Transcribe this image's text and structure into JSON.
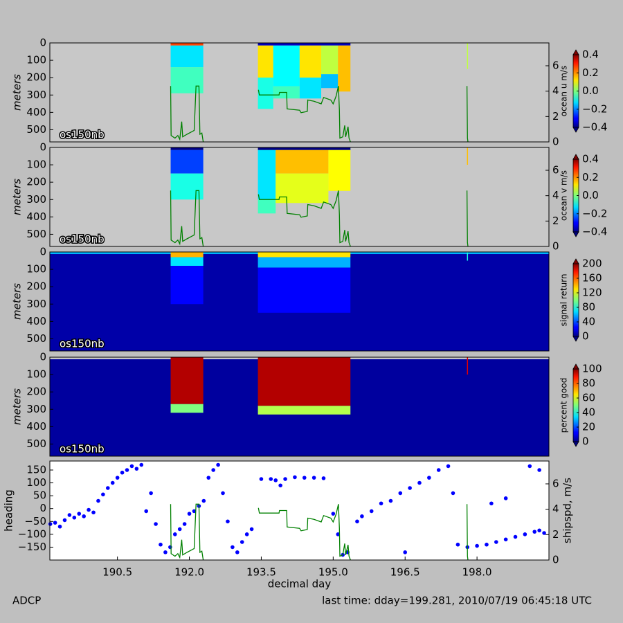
{
  "chart_data": [
    {
      "type": "heatmap",
      "ylabel": "meters",
      "annotation": "os150nb",
      "xlim": [
        189.09,
        199.5
      ],
      "ylim": [
        570,
        0
      ],
      "yticks": [
        0,
        100,
        200,
        300,
        400,
        500
      ],
      "colorbar_label": "ocean u m/s",
      "clim": [
        -0.4,
        0.4
      ],
      "cticks": [
        {
          "value": -0.4,
          "label": "−0.4"
        },
        {
          "value": -0.2,
          "label": "−0.2"
        },
        {
          "value": 0,
          "label": "0.0"
        },
        0.2,
        0.4
      ],
      "patches": [
        {
          "x": [
            191.61,
            192.29
          ],
          "depth": [
            0,
            15
          ],
          "value": 0.25
        },
        {
          "x": [
            191.61,
            192.29
          ],
          "depth": [
            15,
            140
          ],
          "value": -0.12
        },
        {
          "x": [
            191.61,
            192.29
          ],
          "depth": [
            140,
            290
          ],
          "value": -0.05
        },
        {
          "x": [
            193.43,
            195.36
          ],
          "depth": [
            0,
            15
          ],
          "value": -0.35
        },
        {
          "x": [
            193.43,
            193.75
          ],
          "depth": [
            15,
            200
          ],
          "value": 0.12
        },
        {
          "x": [
            193.43,
            193.75
          ],
          "depth": [
            200,
            380
          ],
          "value": -0.08
        },
        {
          "x": [
            193.75,
            194.3
          ],
          "depth": [
            15,
            250
          ],
          "value": -0.1
        },
        {
          "x": [
            193.75,
            194.3
          ],
          "depth": [
            250,
            320
          ],
          "value": -0.05
        },
        {
          "x": [
            194.3,
            194.75
          ],
          "depth": [
            15,
            200
          ],
          "value": 0.12
        },
        {
          "x": [
            194.3,
            194.75
          ],
          "depth": [
            200,
            320
          ],
          "value": -0.12
        },
        {
          "x": [
            194.75,
            195.1
          ],
          "depth": [
            15,
            180
          ],
          "value": 0.05
        },
        {
          "x": [
            194.75,
            195.1
          ],
          "depth": [
            180,
            260
          ],
          "value": -0.15
        },
        {
          "x": [
            195.1,
            195.36
          ],
          "depth": [
            15,
            280
          ],
          "value": 0.15
        },
        {
          "x": [
            197.79,
            197.81
          ],
          "depth": [
            0,
            150
          ],
          "value": 0.05
        }
      ],
      "y2lim": [
        0,
        7.8
      ],
      "y2ticks": [
        0,
        2,
        4,
        6
      ],
      "line": {
        "color": "#008000",
        "x": [
          191.61,
          191.62,
          191.7,
          191.76,
          191.8,
          191.84,
          191.86,
          191.95,
          192.05,
          192.1,
          192.14,
          192.2,
          192.22,
          192.26,
          192.29,
          193.0,
          193.44,
          193.46,
          193.87,
          193.88,
          194.03,
          194.04,
          194.3,
          194.33,
          194.46,
          194.47,
          194.6,
          194.75,
          194.8,
          194.95,
          195.0,
          195.06,
          195.11,
          195.13,
          195.14,
          195.2,
          195.24,
          195.26,
          195.31,
          195.33,
          195.36,
          196.5,
          197.79,
          197.8,
          197.81
        ],
        "values": [
          4.4,
          0.5,
          0.3,
          0.5,
          0.2,
          1.6,
          0.4,
          0.6,
          0.8,
          0.9,
          4.4,
          4.4,
          0.6,
          0.7,
          0.0,
          null,
          4.1,
          3.7,
          3.7,
          3.9,
          3.9,
          2.6,
          2.5,
          2.3,
          2.4,
          3.3,
          3.2,
          3.0,
          3.5,
          3.3,
          3.0,
          3.6,
          4.4,
          2.5,
          0.3,
          0.4,
          1.3,
          0.4,
          1.2,
          0.3,
          0.0,
          null,
          4.4,
          0.3,
          0.0
        ]
      }
    },
    {
      "type": "heatmap",
      "ylabel": "meters",
      "annotation": "os150nb",
      "xlim": [
        189.09,
        199.5
      ],
      "ylim": [
        570,
        0
      ],
      "yticks": [
        0,
        100,
        200,
        300,
        400,
        500
      ],
      "colorbar_label": "ocean v m/s",
      "clim": [
        -0.4,
        0.4
      ],
      "cticks": [
        {
          "value": -0.4,
          "label": "−0.4"
        },
        {
          "value": -0.2,
          "label": "−0.2"
        },
        {
          "value": 0,
          "label": "0.0"
        },
        0.2,
        0.4
      ],
      "patches": [
        {
          "x": [
            191.61,
            192.29
          ],
          "depth": [
            0,
            15
          ],
          "value": -0.45
        },
        {
          "x": [
            191.61,
            192.29
          ],
          "depth": [
            15,
            150
          ],
          "value": -0.25
        },
        {
          "x": [
            191.61,
            192.29
          ],
          "depth": [
            150,
            300
          ],
          "value": -0.08
        },
        {
          "x": [
            193.43,
            195.36
          ],
          "depth": [
            0,
            15
          ],
          "value": -0.4
        },
        {
          "x": [
            193.43,
            193.8
          ],
          "depth": [
            15,
            300
          ],
          "value": -0.12
        },
        {
          "x": [
            193.43,
            193.8
          ],
          "depth": [
            300,
            380
          ],
          "value": -0.05
        },
        {
          "x": [
            193.8,
            194.9
          ],
          "depth": [
            15,
            150
          ],
          "value": 0.15
        },
        {
          "x": [
            193.8,
            194.9
          ],
          "depth": [
            150,
            320
          ],
          "value": 0.08
        },
        {
          "x": [
            194.9,
            195.36
          ],
          "depth": [
            15,
            250
          ],
          "value": 0.1
        },
        {
          "x": [
            197.79,
            197.81
          ],
          "depth": [
            0,
            100
          ],
          "value": 0.15
        }
      ],
      "y2lim": [
        0,
        7.8
      ],
      "y2ticks": [
        0,
        2,
        4,
        6
      ],
      "line": {
        "color": "#008000",
        "x": [
          191.61,
          191.62,
          191.7,
          191.76,
          191.8,
          191.84,
          191.86,
          191.95,
          192.05,
          192.1,
          192.14,
          192.2,
          192.22,
          192.26,
          192.29,
          193.0,
          193.44,
          193.46,
          193.87,
          193.88,
          194.03,
          194.04,
          194.3,
          194.33,
          194.46,
          194.47,
          194.6,
          194.75,
          194.8,
          194.95,
          195.0,
          195.06,
          195.11,
          195.13,
          195.14,
          195.2,
          195.24,
          195.26,
          195.31,
          195.33,
          195.36,
          196.5,
          197.79,
          197.8,
          197.81
        ],
        "values": [
          4.4,
          0.5,
          0.3,
          0.5,
          0.2,
          1.6,
          0.4,
          0.6,
          0.8,
          0.9,
          4.4,
          4.4,
          0.6,
          0.7,
          0.0,
          null,
          4.1,
          3.7,
          3.7,
          3.9,
          3.9,
          2.6,
          2.5,
          2.3,
          2.4,
          3.3,
          3.2,
          3.0,
          3.5,
          3.3,
          3.0,
          3.6,
          4.4,
          2.5,
          0.3,
          0.4,
          1.3,
          0.4,
          1.2,
          0.3,
          0.0,
          null,
          4.4,
          0.3,
          0.0
        ]
      }
    },
    {
      "type": "heatmap",
      "ylabel": "meters",
      "annotation": "os150nb",
      "xlim": [
        189.09,
        199.5
      ],
      "ylim": [
        570,
        0
      ],
      "yticks": [
        0,
        100,
        200,
        300,
        400,
        500
      ],
      "colorbar_label": "signal return",
      "clim": [
        0,
        200
      ],
      "cticks": [
        0,
        40,
        80,
        120,
        160,
        200
      ],
      "patches": [
        {
          "x": [
            189.09,
            199.5
          ],
          "depth": [
            0,
            12
          ],
          "value": 60
        },
        {
          "x": [
            189.09,
            199.5
          ],
          "depth": [
            12,
            570
          ],
          "value": 8
        },
        {
          "x": [
            191.61,
            192.29
          ],
          "depth": [
            0,
            30
          ],
          "value": 140
        },
        {
          "x": [
            191.61,
            192.29
          ],
          "depth": [
            30,
            80
          ],
          "value": 70
        },
        {
          "x": [
            191.61,
            192.29
          ],
          "depth": [
            80,
            300
          ],
          "value": 25
        },
        {
          "x": [
            193.43,
            195.36
          ],
          "depth": [
            0,
            30
          ],
          "value": 130
        },
        {
          "x": [
            193.43,
            195.36
          ],
          "depth": [
            30,
            90
          ],
          "value": 60
        },
        {
          "x": [
            193.43,
            195.36
          ],
          "depth": [
            90,
            350
          ],
          "value": 25
        },
        {
          "x": [
            197.79,
            197.81
          ],
          "depth": [
            0,
            50
          ],
          "value": 80
        }
      ]
    },
    {
      "type": "heatmap",
      "ylabel": "meters",
      "annotation": "os150nb",
      "xlim": [
        189.09,
        199.5
      ],
      "ylim": [
        570,
        0
      ],
      "yticks": [
        0,
        100,
        200,
        300,
        400,
        500
      ],
      "colorbar_label": "percent good",
      "clim": [
        0,
        100
      ],
      "cticks": [
        0,
        20,
        40,
        60,
        80,
        100
      ],
      "patches": [
        {
          "x": [
            189.09,
            199.5
          ],
          "depth": [
            12,
            570
          ],
          "value": 3
        },
        {
          "x": [
            191.61,
            192.29
          ],
          "depth": [
            0,
            270
          ],
          "value": 95
        },
        {
          "x": [
            191.61,
            192.29
          ],
          "depth": [
            270,
            320
          ],
          "value": 50
        },
        {
          "x": [
            193.43,
            195.36
          ],
          "depth": [
            0,
            280
          ],
          "value": 95
        },
        {
          "x": [
            193.43,
            195.36
          ],
          "depth": [
            280,
            330
          ],
          "value": 55
        },
        {
          "x": [
            197.79,
            197.81
          ],
          "depth": [
            0,
            100
          ],
          "value": 90
        }
      ]
    },
    {
      "type": "scatter",
      "ylabel": "heading",
      "y2label": "shipspd, m/s",
      "xlabel": "decimal day",
      "xlim": [
        189.09,
        199.5
      ],
      "xticks": [
        190.5,
        {
          "value": 192,
          "label": "192.0"
        },
        193.5,
        {
          "value": 195,
          "label": "195.0"
        },
        196.5,
        {
          "value": 198,
          "label": "198.0"
        }
      ],
      "ylim": [
        -200,
        185
      ],
      "yticks": [
        {
          "value": -150,
          "label": "−150"
        },
        {
          "value": -100,
          "label": "−100"
        },
        {
          "value": -50,
          "label": "−50"
        },
        0,
        50,
        100,
        150
      ],
      "y2lim": [
        0,
        7.8
      ],
      "y2ticks": [
        0,
        2,
        4,
        6
      ],
      "points": {
        "color": "#0000ff",
        "x": [
          189.1,
          189.2,
          189.3,
          189.4,
          189.5,
          189.6,
          189.7,
          189.8,
          189.9,
          190.0,
          190.1,
          190.2,
          190.3,
          190.4,
          190.5,
          190.6,
          190.7,
          190.8,
          190.9,
          191.0,
          191.1,
          191.2,
          191.3,
          191.4,
          191.5,
          191.6,
          191.7,
          191.8,
          191.9,
          192.0,
          192.1,
          192.2,
          192.3,
          192.4,
          192.5,
          192.6,
          192.7,
          192.8,
          192.9,
          193.0,
          193.1,
          193.2,
          193.3,
          193.5,
          193.7,
          193.8,
          193.9,
          194.0,
          194.2,
          194.4,
          194.6,
          194.8,
          195.0,
          195.1,
          195.2,
          195.3,
          195.5,
          195.6,
          195.8,
          196.0,
          196.2,
          196.4,
          196.5,
          196.6,
          196.8,
          197.0,
          197.2,
          197.4,
          197.5,
          197.6,
          197.8,
          198.0,
          198.2,
          198.3,
          198.4,
          198.6,
          198.6,
          198.8,
          199.0,
          199.1,
          199.2,
          199.3,
          199.3,
          199.4
        ],
        "values": [
          -60,
          -55,
          -70,
          -45,
          -25,
          -35,
          -20,
          -30,
          -5,
          -15,
          30,
          55,
          80,
          100,
          120,
          140,
          150,
          165,
          155,
          170,
          -10,
          60,
          -60,
          -140,
          -170,
          -150,
          -100,
          -80,
          -60,
          -20,
          -10,
          10,
          30,
          120,
          150,
          170,
          60,
          -50,
          -150,
          -170,
          -130,
          -100,
          -80,
          115,
          115,
          110,
          90,
          115,
          122,
          120,
          120,
          118,
          -20,
          -100,
          -180,
          -170,
          -50,
          -30,
          -10,
          20,
          30,
          60,
          -170,
          80,
          100,
          120,
          150,
          165,
          60,
          -140,
          -150,
          -145,
          -140,
          20,
          -130,
          -120,
          40,
          -110,
          -100,
          165,
          -90,
          -85,
          150,
          -95
        ]
      },
      "line": {
        "color": "#008000",
        "x": [
          191.61,
          191.62,
          191.7,
          191.76,
          191.8,
          191.84,
          191.86,
          191.95,
          192.05,
          192.1,
          192.14,
          192.2,
          192.22,
          192.26,
          192.29,
          193.0,
          193.44,
          193.46,
          193.87,
          193.88,
          194.03,
          194.04,
          194.3,
          194.33,
          194.46,
          194.47,
          194.6,
          194.75,
          194.8,
          194.95,
          195.0,
          195.06,
          195.11,
          195.13,
          195.14,
          195.2,
          195.24,
          195.26,
          195.31,
          195.33,
          195.36,
          196.5,
          197.79,
          197.8,
          197.81
        ],
        "values": [
          4.4,
          0.5,
          0.3,
          0.5,
          0.2,
          1.6,
          0.4,
          0.6,
          0.8,
          0.9,
          4.4,
          4.4,
          0.6,
          0.7,
          0.0,
          null,
          4.1,
          3.7,
          3.7,
          3.9,
          3.9,
          2.6,
          2.5,
          2.3,
          2.4,
          3.3,
          3.2,
          3.0,
          3.5,
          3.3,
          3.0,
          3.6,
          4.4,
          2.5,
          0.3,
          0.4,
          1.3,
          0.4,
          1.2,
          0.3,
          0.0,
          null,
          4.4,
          0.3,
          0.0
        ]
      }
    }
  ],
  "footer": {
    "left": "ADCP",
    "right": "last time: dday=199.281,  2010/07/19 06:45:18 UTC"
  }
}
